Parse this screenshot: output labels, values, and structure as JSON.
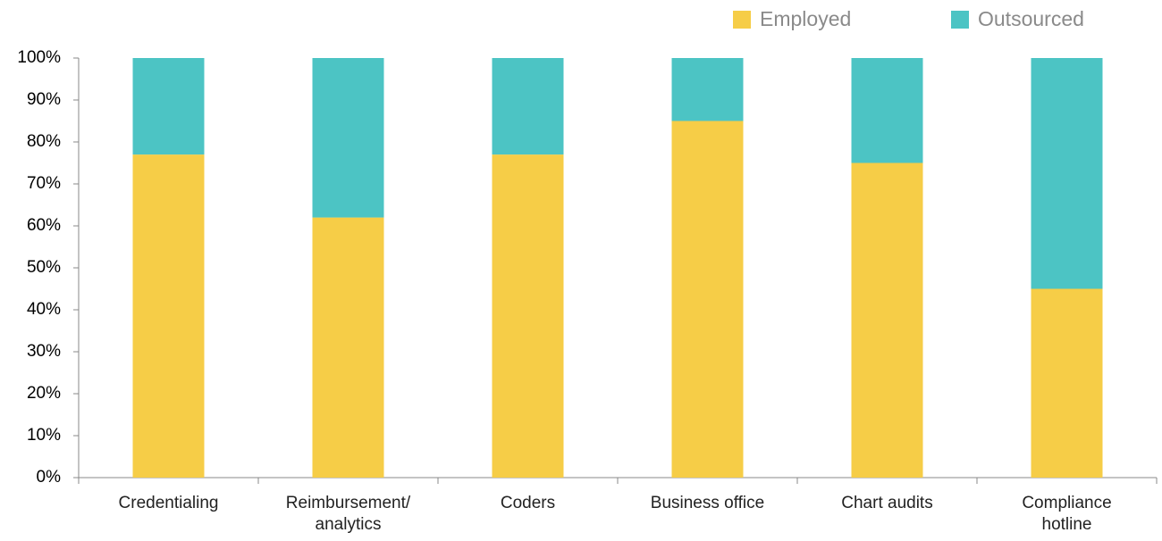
{
  "chart_data": {
    "type": "stacked_bar",
    "categories": [
      "Credentialing",
      "Reimbursement/\nanalytics",
      "Coders",
      "Business office",
      "Chart audits",
      "Compliance\nhotline"
    ],
    "series": [
      {
        "name": "Employed",
        "color": "#f6cd47",
        "values": [
          77,
          62,
          77,
          85,
          75,
          45
        ]
      },
      {
        "name": "Outsourced",
        "color": "#4cc4c4",
        "values": [
          23,
          38,
          23,
          15,
          25,
          55
        ]
      }
    ],
    "ylim": [
      0,
      100
    ],
    "yticks": [
      {
        "value": 0,
        "label": "0%"
      },
      {
        "value": 10,
        "label": "10%"
      },
      {
        "value": 20,
        "label": "20%"
      },
      {
        "value": 30,
        "label": "30%"
      },
      {
        "value": 40,
        "label": "40%"
      },
      {
        "value": 50,
        "label": "50%"
      },
      {
        "value": 60,
        "label": "60%"
      },
      {
        "value": 70,
        "label": "70%"
      },
      {
        "value": 80,
        "label": "80%"
      },
      {
        "value": 90,
        "label": "90%"
      },
      {
        "value": 100,
        "label": "100%"
      }
    ],
    "grid": false,
    "legend_position": "top-right"
  }
}
